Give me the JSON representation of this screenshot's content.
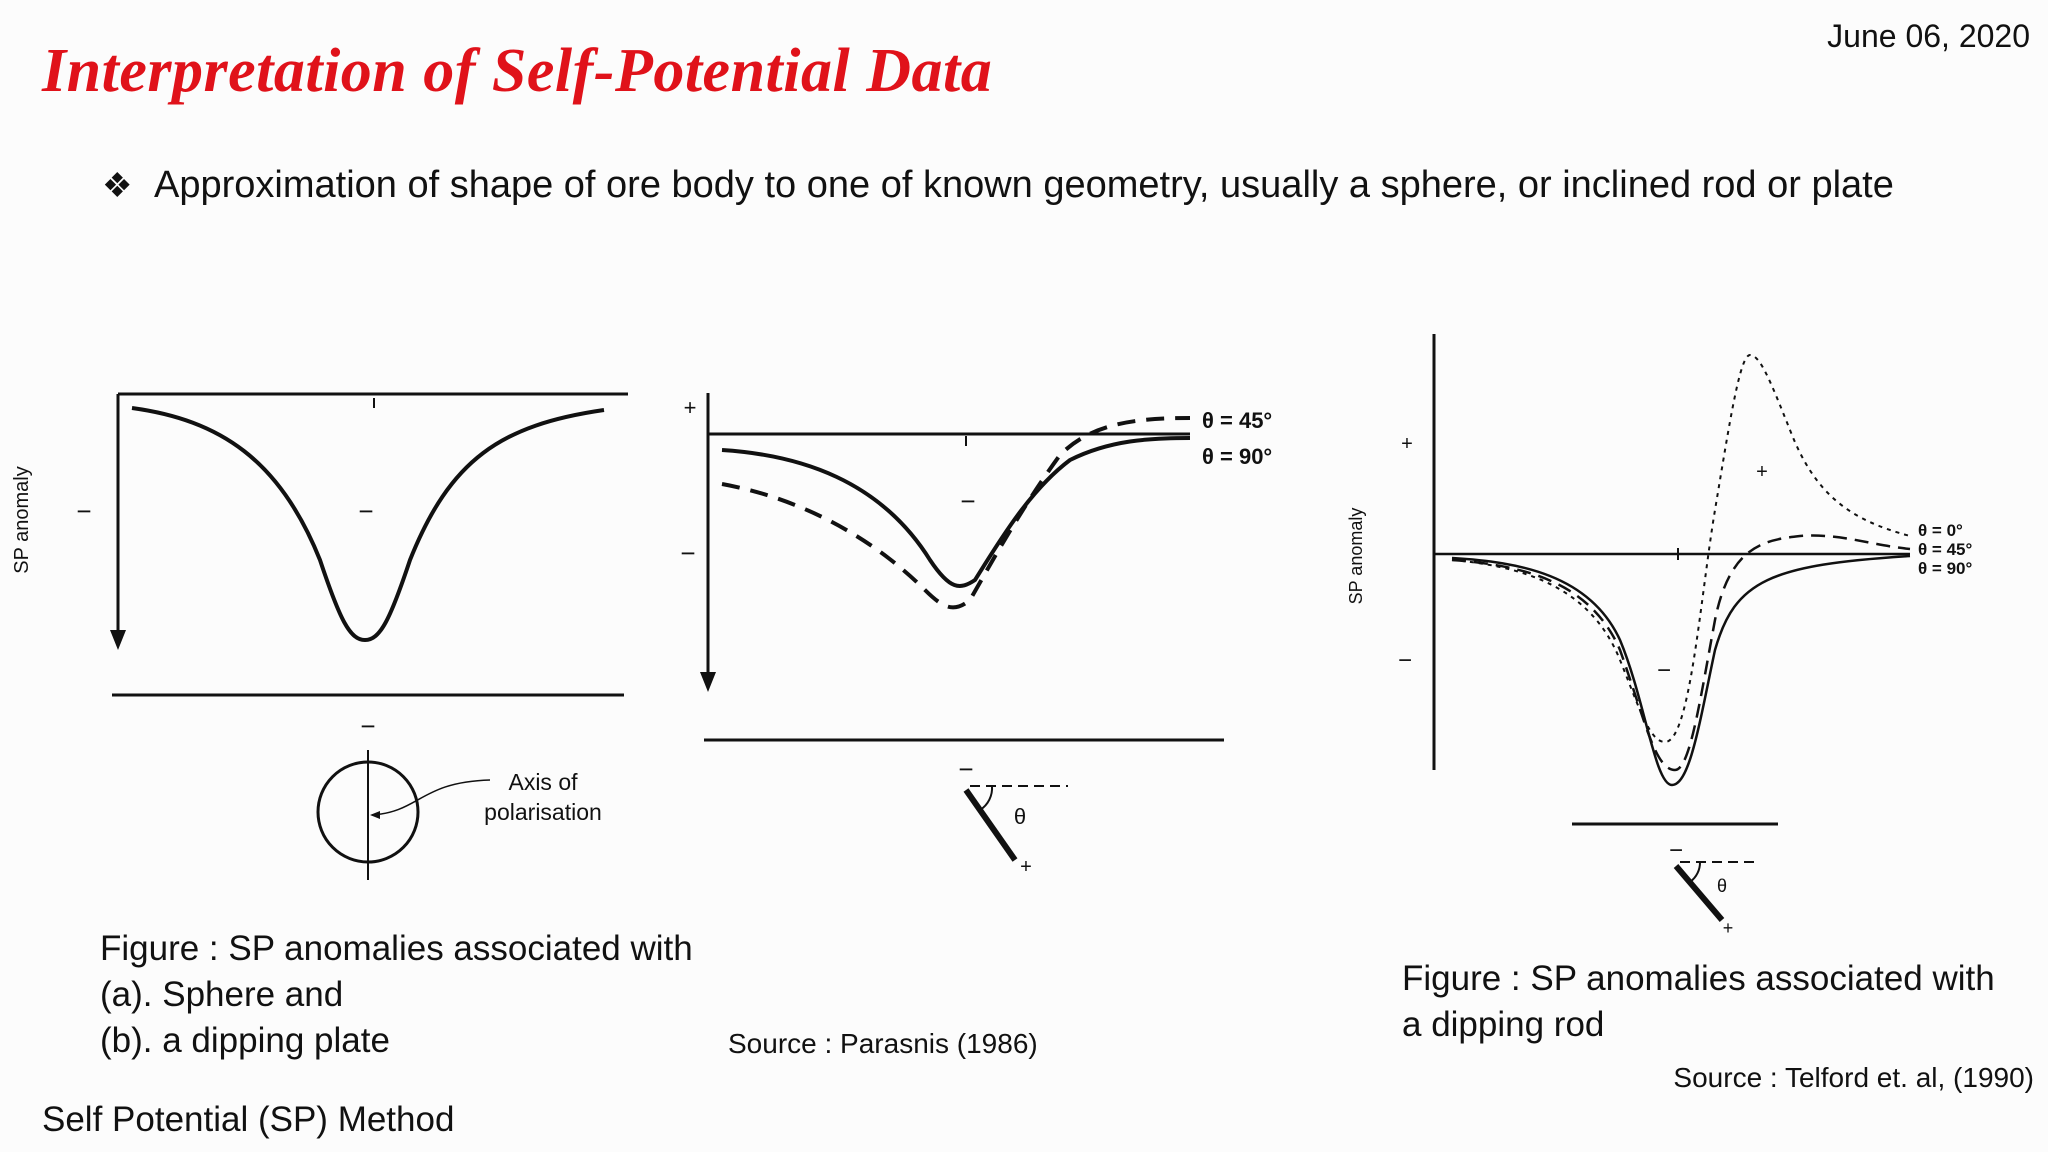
{
  "slide": {
    "title": "Interpretation of Self-Potential Data",
    "date": "June 06, 2020",
    "bullet_icon": "diamond-bullet-icon",
    "bullet": "Approximation of shape of ore body to one of known geometry, usually a sphere, or inclined rod or plate",
    "footer": "Self Potential (SP) Method"
  },
  "figure_left": {
    "ylabel": "SP anomaly",
    "minus": "−",
    "plus": "+",
    "axis_label": "Axis of",
    "axis_label2": "polarisation",
    "theta45": "θ = 45°",
    "theta90": "θ = 90°",
    "theta": "θ",
    "caption_line1": "Figure : SP anomalies associated with",
    "caption_line2": "(a). Sphere and",
    "caption_line3": "(b). a dipping plate",
    "source": "Source : Parasnis (1986)"
  },
  "figure_right": {
    "ylabel": "SP anomaly",
    "plus": "+",
    "minus": "−",
    "theta0": "θ = 0°",
    "theta45": "θ = 45°",
    "theta90": "θ = 90°",
    "theta": "θ",
    "caption_line1": "Figure : SP anomalies associated with",
    "caption_line2": "a dipping rod",
    "source": "Source : Telford et. al, (1990)"
  }
}
